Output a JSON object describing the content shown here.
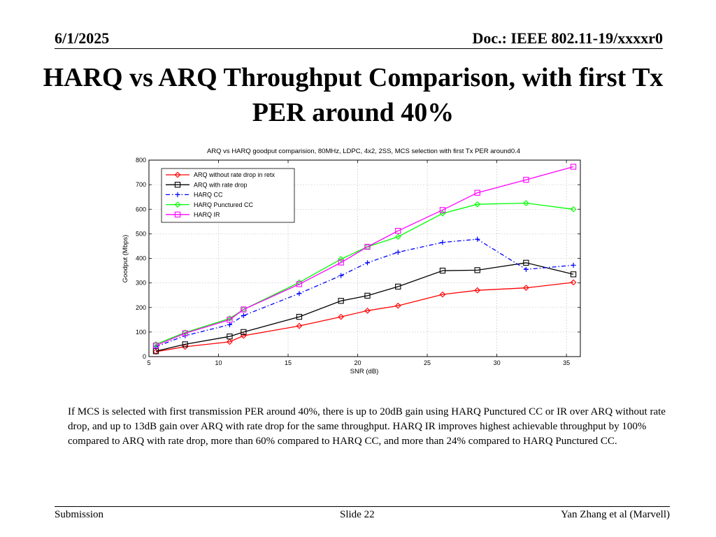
{
  "header": {
    "date": "6/1/2025",
    "doc": "Doc.: IEEE 802.11-19/xxxxr0"
  },
  "slide_title": "HARQ vs ARQ Throughput Comparison, with first Tx PER around 40%",
  "body_text": "If MCS is selected with first transmission PER around 40%, there is up to 20dB gain using HARQ Punctured CC or IR over ARQ without rate drop, and up to 13dB gain over ARQ with rate drop for the same throughput. HARQ IR improves highest achievable throughput by 100% compared to ARQ with rate drop, more than 60% compared to HARQ CC, and more than 24% compared to HARQ Punctured CC.",
  "footer": {
    "left": "Submission",
    "center": "Slide 22",
    "right": "Yan Zhang et al (Marvell)"
  },
  "chart_data": {
    "type": "line",
    "title": "ARQ vs HARQ goodput comparision, 80MHz, LDPC, 4x2, 2SS, MCS selection with first Tx PER around0.4",
    "xlabel": "SNR (dB)",
    "ylabel": "Goodput (Mbps)",
    "xlim": [
      5,
      36
    ],
    "ylim": [
      0,
      800
    ],
    "xticks": [
      5,
      10,
      15,
      20,
      25,
      30,
      35
    ],
    "yticks": [
      0,
      100,
      200,
      300,
      400,
      500,
      600,
      700,
      800
    ],
    "grid": "dotted",
    "legend_position": "top-left",
    "series": [
      {
        "name": "ARQ without rate drop in retx",
        "color": "#ff0000",
        "marker": "diamond",
        "dash": "solid",
        "x": [
          5.5,
          7.6,
          10.8,
          11.8,
          15.8,
          18.8,
          20.7,
          22.9,
          26.1,
          28.6,
          32.1,
          35.5
        ],
        "y": [
          20,
          40,
          60,
          85,
          125,
          162,
          187,
          207,
          253,
          270,
          280,
          302
        ]
      },
      {
        "name": "ARQ with rate drop",
        "color": "#000000",
        "marker": "square",
        "dash": "solid",
        "x": [
          5.5,
          7.6,
          10.8,
          11.8,
          15.8,
          18.8,
          20.7,
          22.9,
          26.1,
          28.6,
          32.1,
          35.5
        ],
        "y": [
          22,
          50,
          82,
          100,
          162,
          227,
          248,
          285,
          350,
          352,
          382,
          335
        ]
      },
      {
        "name": "HARQ CC",
        "color": "#0000ff",
        "marker": "plus",
        "dash": "dashdot",
        "x": [
          5.5,
          7.6,
          10.8,
          11.8,
          15.8,
          18.8,
          20.7,
          22.9,
          26.1,
          28.6,
          32.1,
          35.5
        ],
        "y": [
          40,
          85,
          130,
          167,
          257,
          330,
          382,
          425,
          465,
          478,
          355,
          372
        ]
      },
      {
        "name": "HARQ Punctured CC",
        "color": "#00ff00",
        "marker": "diamond",
        "dash": "solid",
        "x": [
          5.5,
          7.6,
          10.8,
          11.8,
          15.8,
          18.8,
          20.7,
          22.9,
          26.1,
          28.6,
          32.1,
          35.5
        ],
        "y": [
          50,
          98,
          155,
          192,
          302,
          397,
          447,
          488,
          583,
          620,
          625,
          600
        ]
      },
      {
        "name": "HARQ IR",
        "color": "#ff00ff",
        "marker": "square",
        "dash": "solid",
        "x": [
          5.5,
          7.6,
          10.8,
          11.8,
          15.8,
          18.8,
          20.7,
          22.9,
          26.1,
          28.6,
          32.1,
          35.5
        ],
        "y": [
          45,
          95,
          150,
          192,
          295,
          383,
          447,
          512,
          597,
          667,
          720,
          773
        ]
      }
    ]
  }
}
